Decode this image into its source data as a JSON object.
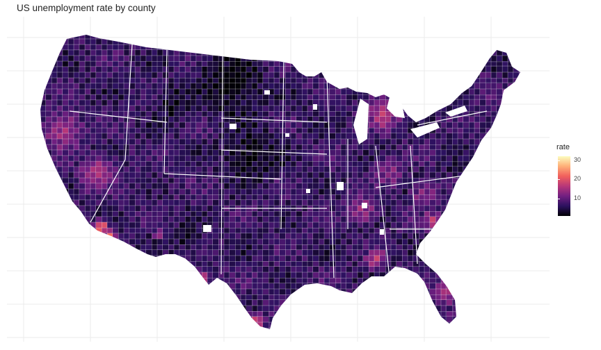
{
  "title": "US unemployment rate by county",
  "legend": {
    "title": "rate",
    "ticks": [
      "30",
      "20",
      "10"
    ],
    "tick_values": [
      30,
      20,
      10
    ],
    "range": [
      1,
      32
    ],
    "colors": [
      "#000004",
      "#2c115f",
      "#721f81",
      "#b73779",
      "#f1605d",
      "#feb078",
      "#fcfdbf"
    ]
  },
  "map": {
    "background": "#ffffff",
    "grid_color": "#ebebeb",
    "county_border": "#ffffff",
    "hotspots": [
      {
        "region": "Michigan",
        "level": "high"
      },
      {
        "region": "Central California",
        "level": "high"
      },
      {
        "region": "Southwest Arizona",
        "level": "very high"
      },
      {
        "region": "Southern Georgia / Alabama",
        "level": "high"
      },
      {
        "region": "South Carolina",
        "level": "high"
      },
      {
        "region": "South Florida",
        "level": "high"
      },
      {
        "region": "Rio Grande Valley, Texas",
        "level": "high"
      },
      {
        "region": "Northern Plains (Dakotas, Nebraska)",
        "level": "low"
      }
    ]
  }
}
